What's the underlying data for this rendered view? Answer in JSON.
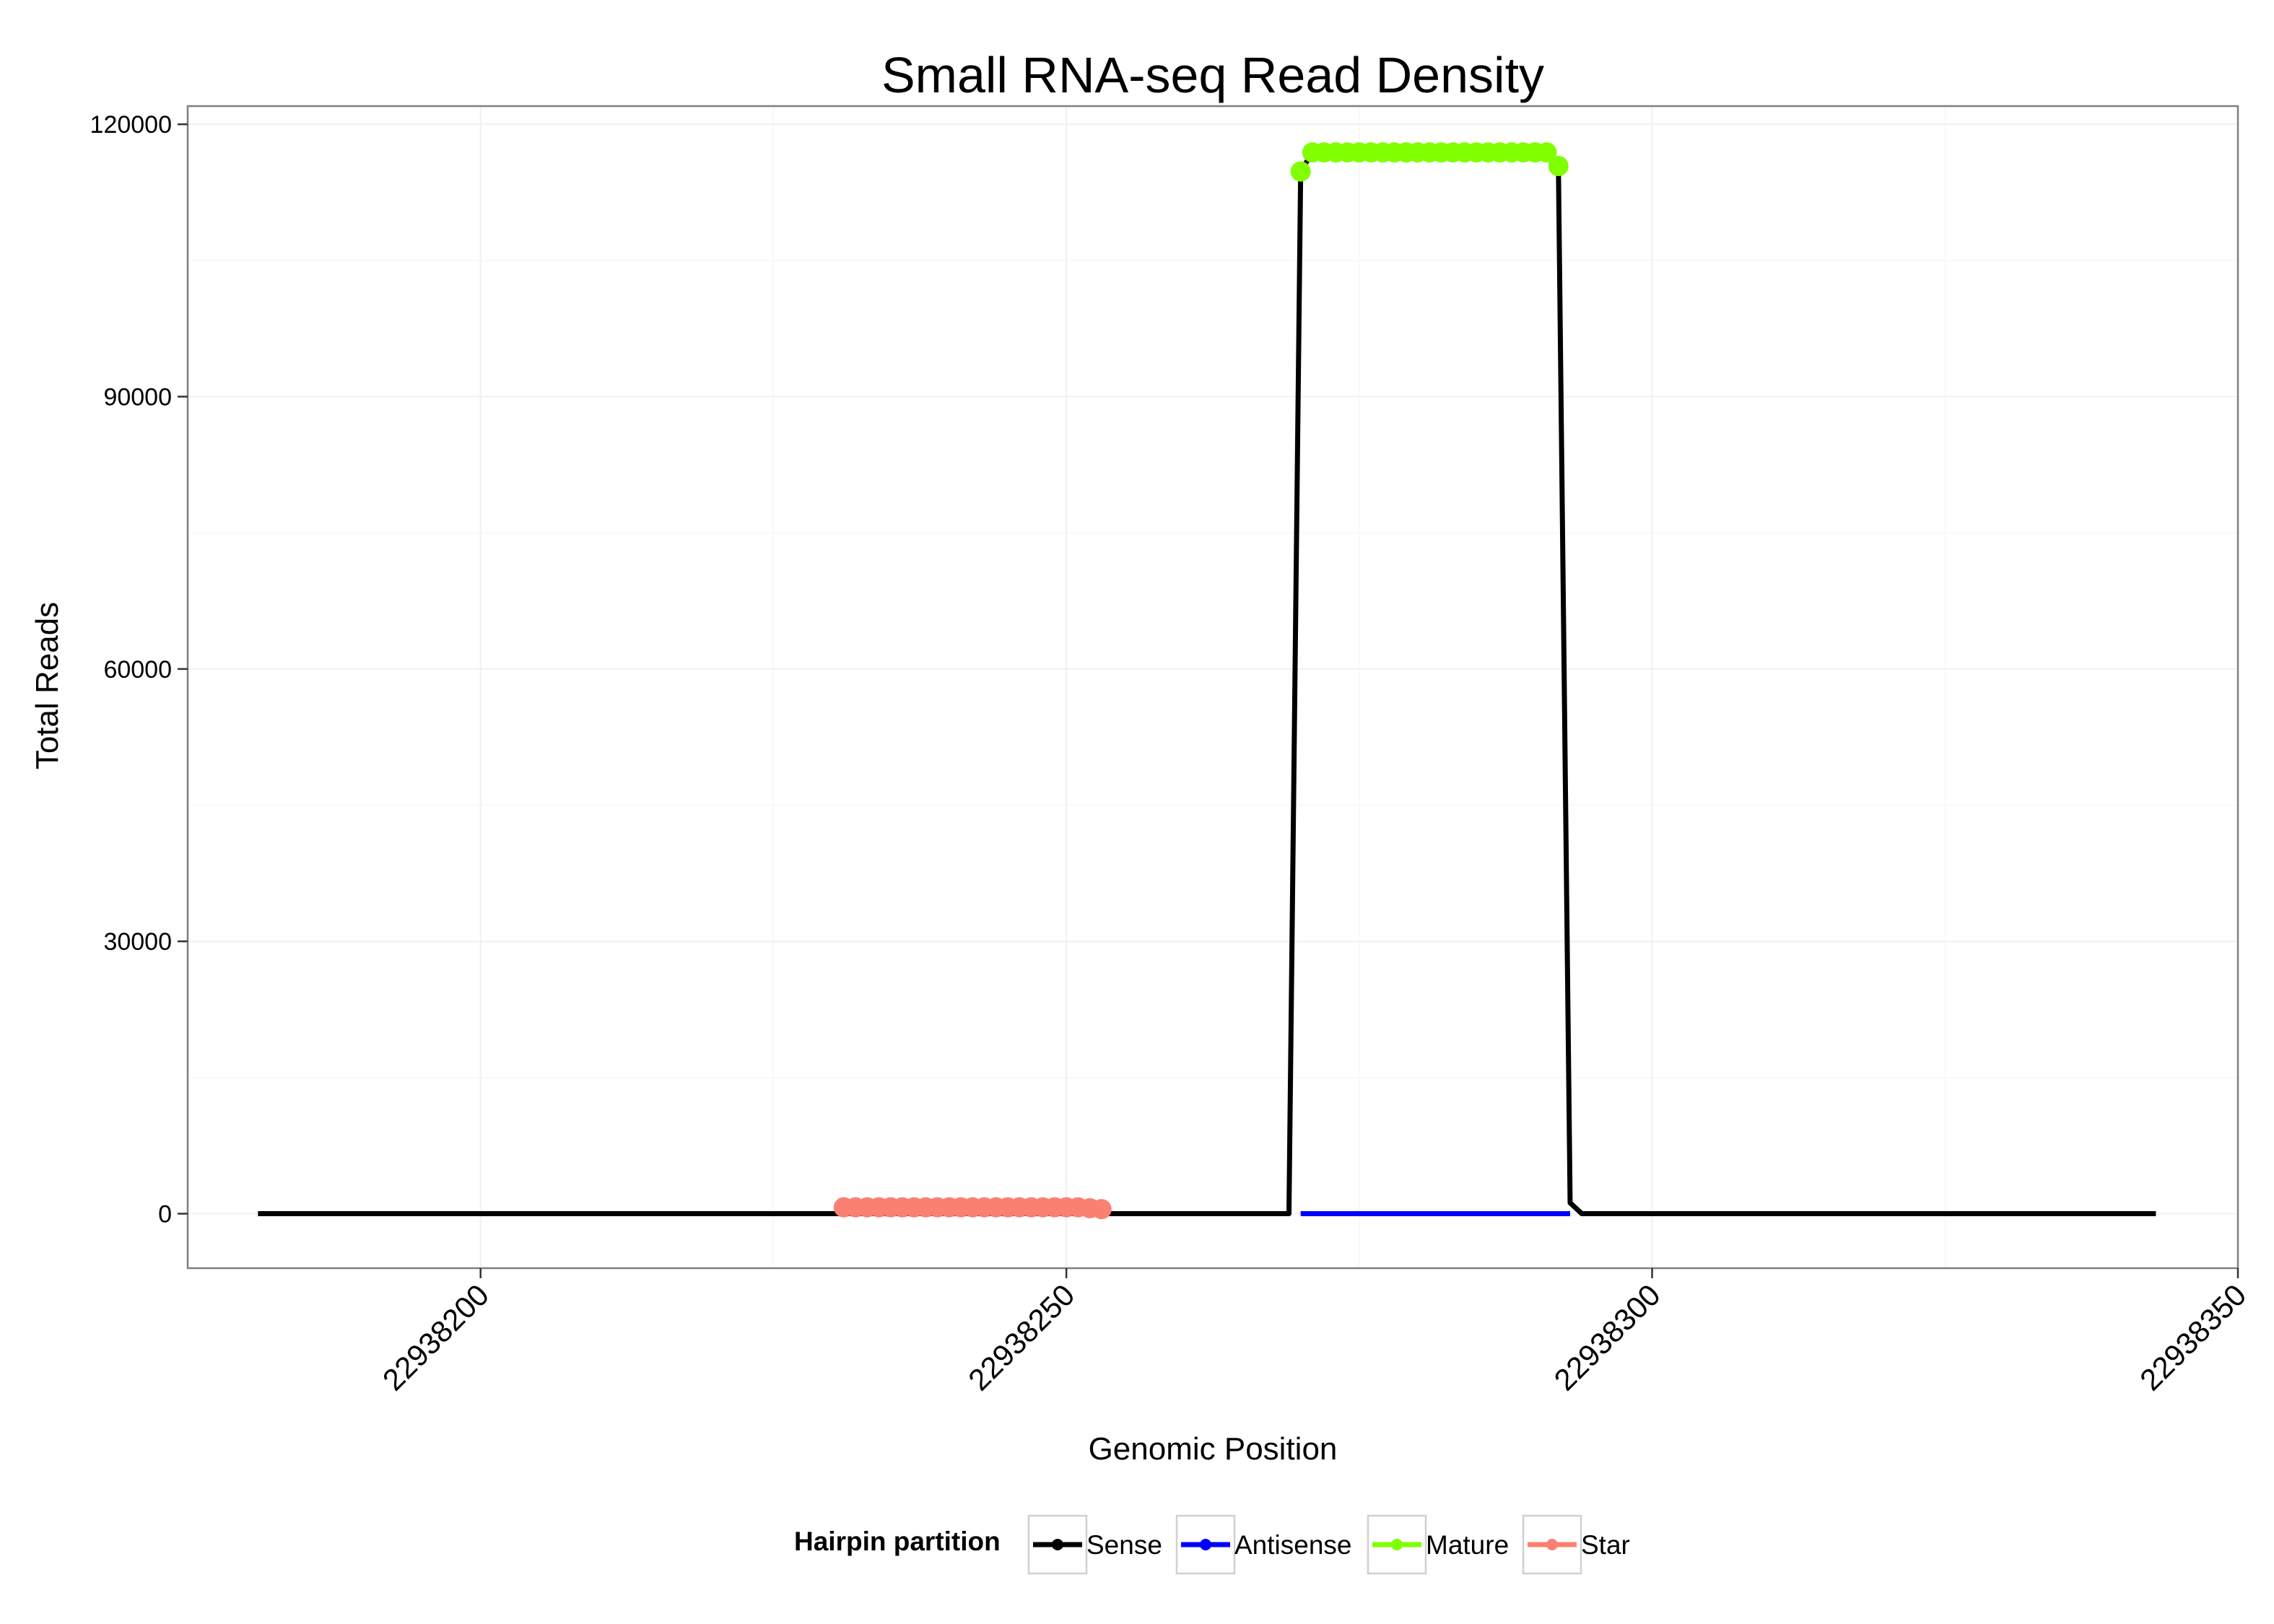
{
  "chart_data": {
    "type": "line",
    "title": "Small RNA-seq Read Density",
    "xlabel": "Genomic Position",
    "ylabel": "Total Reads",
    "xlim": [
      22938175,
      22938350
    ],
    "ylim": [
      -6000,
      122000
    ],
    "x_ticks": [
      22938200,
      22938250,
      22938300,
      22938350
    ],
    "x_tick_labels": [
      "22938200",
      "22938250",
      "22938300",
      "22938350"
    ],
    "y_ticks": [
      0,
      30000,
      60000,
      90000,
      120000
    ],
    "y_tick_labels": [
      "0",
      "30000",
      "60000",
      "90000",
      "120000"
    ],
    "grid": true,
    "legend": {
      "title": "Hairpin partition",
      "placement": "bottom",
      "entries": [
        {
          "name": "Sense",
          "color": "#000000"
        },
        {
          "name": "Antisense",
          "color": "#0000ff"
        },
        {
          "name": "Mature",
          "color": "#7fff00"
        },
        {
          "name": "Star",
          "color": "#fa8072"
        }
      ]
    },
    "series": [
      {
        "name": "Sense",
        "color": "#000000",
        "kind": "line",
        "points": [
          [
            22938181,
            0
          ],
          [
            22938269,
            0
          ],
          [
            22938270,
            114800
          ],
          [
            22938271,
            116900
          ],
          [
            22938291,
            116900
          ],
          [
            22938292,
            115400
          ],
          [
            22938293,
            1200
          ],
          [
            22938294,
            0
          ],
          [
            22938343,
            0
          ]
        ]
      },
      {
        "name": "Antisense",
        "color": "#0000ff",
        "kind": "line",
        "points": [
          [
            22938270,
            0
          ],
          [
            22938293,
            0
          ]
        ]
      },
      {
        "name": "Mature",
        "color": "#7fff00",
        "kind": "points",
        "points": [
          [
            22938270,
            114800
          ],
          [
            22938271,
            116900
          ],
          [
            22938272,
            116900
          ],
          [
            22938273,
            116900
          ],
          [
            22938274,
            116900
          ],
          [
            22938275,
            116900
          ],
          [
            22938276,
            116900
          ],
          [
            22938277,
            116900
          ],
          [
            22938278,
            116900
          ],
          [
            22938279,
            116900
          ],
          [
            22938280,
            116900
          ],
          [
            22938281,
            116900
          ],
          [
            22938282,
            116900
          ],
          [
            22938283,
            116900
          ],
          [
            22938284,
            116900
          ],
          [
            22938285,
            116900
          ],
          [
            22938286,
            116900
          ],
          [
            22938287,
            116900
          ],
          [
            22938288,
            116900
          ],
          [
            22938289,
            116900
          ],
          [
            22938290,
            116900
          ],
          [
            22938291,
            116900
          ],
          [
            22938292,
            115400
          ]
        ]
      },
      {
        "name": "Star",
        "color": "#fa8072",
        "kind": "points",
        "points": [
          [
            22938231,
            700
          ],
          [
            22938232,
            700
          ],
          [
            22938233,
            700
          ],
          [
            22938234,
            700
          ],
          [
            22938235,
            700
          ],
          [
            22938236,
            700
          ],
          [
            22938237,
            700
          ],
          [
            22938238,
            700
          ],
          [
            22938239,
            700
          ],
          [
            22938240,
            700
          ],
          [
            22938241,
            700
          ],
          [
            22938242,
            700
          ],
          [
            22938243,
            700
          ],
          [
            22938244,
            700
          ],
          [
            22938245,
            700
          ],
          [
            22938246,
            700
          ],
          [
            22938247,
            700
          ],
          [
            22938248,
            700
          ],
          [
            22938249,
            700
          ],
          [
            22938250,
            700
          ],
          [
            22938251,
            700
          ],
          [
            22938252,
            600
          ],
          [
            22938253,
            500
          ]
        ]
      }
    ]
  }
}
